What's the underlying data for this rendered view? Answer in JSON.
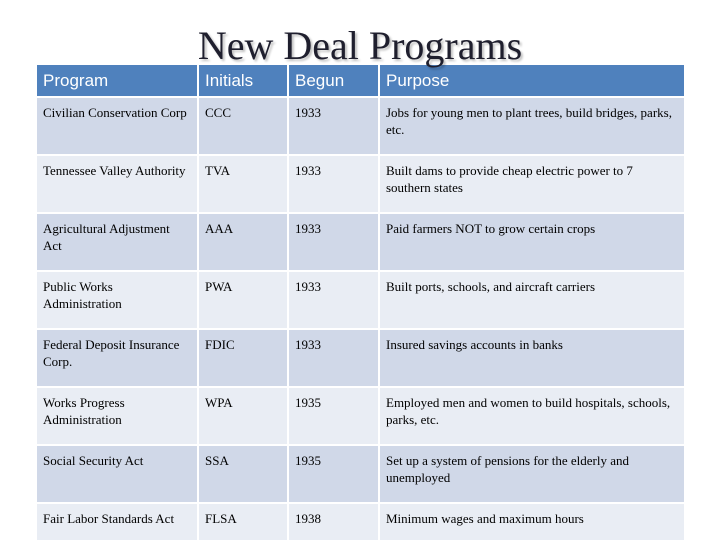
{
  "title": "New Deal Programs",
  "table": {
    "headers": [
      "Program",
      "Initials",
      "Begun",
      "Purpose"
    ],
    "rows": [
      {
        "program": "Civilian Conservation Corp",
        "initials": "CCC",
        "begun": "1933",
        "purpose": "Jobs for young men to plant trees, build bridges, parks, etc."
      },
      {
        "program": "Tennessee Valley Authority",
        "initials": "TVA",
        "begun": "1933",
        "purpose": "Built dams to provide cheap electric power to 7 southern states"
      },
      {
        "program": "Agricultural Adjustment Act",
        "initials": "AAA",
        "begun": "1933",
        "purpose": "Paid farmers NOT to grow certain crops"
      },
      {
        "program": "Public Works Administration",
        "initials": "PWA",
        "begun": "1933",
        "purpose": "Built ports, schools, and aircraft carriers"
      },
      {
        "program": "Federal Deposit Insurance Corp.",
        "initials": "FDIC",
        "begun": "1933",
        "purpose": "Insured savings accounts in banks"
      },
      {
        "program": "Works Progress Administration",
        "initials": "WPA",
        "begun": "1935",
        "purpose": "Employed men and women to build hospitals, schools, parks, etc."
      },
      {
        "program": "Social Security Act",
        "initials": "SSA",
        "begun": "1935",
        "purpose": "Set up a system of pensions for the elderly and unemployed"
      },
      {
        "program": "Fair Labor Standards Act",
        "initials": "FLSA",
        "begun": "1938",
        "purpose": "Minimum wages and maximum hours"
      }
    ]
  },
  "colors": {
    "header_bg": "#4f81bd",
    "row_odd": "#d0d8e8",
    "row_even": "#e9edf4"
  }
}
